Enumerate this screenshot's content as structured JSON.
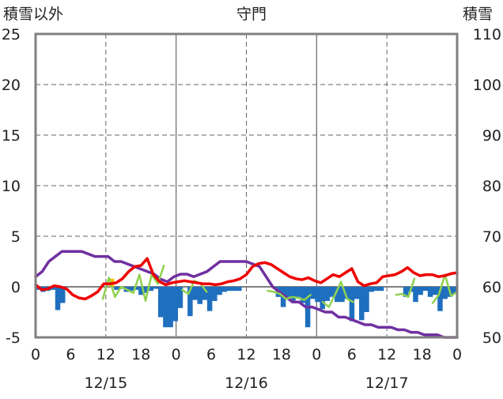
{
  "chart_data": {
    "type": "line",
    "title": "守門",
    "left_axis_title": "積雪以外",
    "right_axis_title": "積雪",
    "left_ylim": [
      -5,
      25
    ],
    "left_ticks": [
      "25",
      "20",
      "15",
      "10",
      "5",
      "0",
      "-5"
    ],
    "right_ylim": [
      50,
      110
    ],
    "right_ticks": [
      "110",
      "100",
      "90",
      "80",
      "70",
      "60",
      "50"
    ],
    "x_hours": [
      0,
      72
    ],
    "x_tick_labels": [
      "0",
      "6",
      "12",
      "18",
      "0",
      "6",
      "12",
      "18",
      "0",
      "6",
      "12",
      "18",
      "0"
    ],
    "date_labels": [
      {
        "label": "12/15",
        "hour": 12
      },
      {
        "label": "12/16",
        "hour": 36
      },
      {
        "label": "12/17",
        "hour": 60
      }
    ],
    "colors": {
      "temperature": "#ee0000",
      "wind": "#8fd14f",
      "snow_depth": "#7030a0",
      "precip_negative": "#1f6fbf",
      "precip_positive": "#ffc000",
      "frame": "#808080"
    },
    "temperature": [
      0.2,
      -0.3,
      -0.2,
      0.1,
      0.0,
      -0.2,
      -0.8,
      -1.1,
      -1.2,
      -0.9,
      -0.5,
      0.3,
      0.3,
      0.4,
      0.8,
      1.5,
      2.0,
      2.1,
      2.8,
      1.2,
      0.5,
      0.2,
      0.4,
      0.5,
      0.6,
      0.5,
      0.4,
      0.3,
      0.3,
      0.2,
      0.3,
      0.5,
      0.6,
      0.8,
      1.2,
      2.0,
      2.3,
      2.4,
      2.2,
      1.8,
      1.4,
      1.0,
      0.8,
      0.7,
      0.9,
      0.6,
      0.4,
      0.8,
      1.2,
      1.0,
      1.4,
      1.8,
      0.5,
      0.1,
      0.3,
      0.4,
      1.0,
      1.1,
      1.2,
      1.5,
      1.9,
      1.4,
      1.1,
      1.2,
      1.2,
      1.0,
      1.1,
      1.3,
      1.4
    ],
    "wind": [
      null,
      null,
      null,
      null,
      null,
      null,
      null,
      null,
      null,
      null,
      null,
      -1.2,
      0.9,
      -1.0,
      0.0,
      -0.3,
      -0.6,
      1.2,
      -1.4,
      1.2,
      0.3,
      2.1,
      null,
      null,
      -0.3,
      -0.7,
      0.6,
      0.3,
      -0.5,
      null,
      null,
      null,
      null,
      null,
      null,
      null,
      null,
      null,
      -0.4,
      -0.5,
      -0.7,
      -1.2,
      -1.0,
      -1.1,
      -1.3,
      -0.8,
      null,
      -1.5,
      -2.0,
      -0.8,
      0.5,
      -1.2,
      -1.5,
      null,
      null,
      null,
      null,
      null,
      null,
      -0.8,
      -0.7,
      -1.0,
      0.8,
      null,
      null,
      -1.6,
      -0.8,
      1.2,
      -0.9,
      -0.5
    ],
    "snow_depth": [
      62,
      63,
      65,
      66,
      67,
      67,
      67,
      67,
      66.5,
      66,
      66,
      66,
      65,
      65,
      64.5,
      64,
      63.5,
      63,
      62.5,
      61.5,
      61,
      62,
      62.5,
      62.5,
      62,
      62.5,
      63,
      64,
      65,
      65,
      65,
      65,
      65,
      64.5,
      64,
      62,
      60,
      59,
      58,
      57,
      57,
      56,
      56,
      55.5,
      55,
      55,
      54,
      54,
      53.5,
      53,
      52.5,
      52.5,
      52,
      52,
      52,
      51.5,
      51.5,
      51,
      51,
      50.5,
      50.5,
      50.5,
      50,
      50,
      50
    ],
    "precip": [
      -0.3,
      -0.5,
      -0.4,
      -0.3,
      -2.3,
      -1.6,
      0,
      0,
      0,
      0,
      0,
      0,
      0,
      0,
      0,
      0.8,
      -0.3,
      -0.2,
      -0.5,
      -0.4,
      -0.3,
      -0.8,
      -0.6,
      -0.4,
      -0.2,
      -3.0,
      -4.0,
      -4.0,
      -3.4,
      -2.1,
      0,
      -2.9,
      -1.3,
      -1.7,
      -1.3,
      -2.4,
      -1.4,
      -0.8,
      -0.5,
      -0.4,
      -0.4,
      -0.4,
      0,
      0,
      0,
      0,
      0,
      0,
      0,
      -1.0,
      -2.0,
      -1.0,
      -1.5,
      -1.0,
      -1.6,
      -4.0,
      -1.2,
      -1.5,
      -2.2,
      -1.4,
      -1.0,
      -1.5,
      -1.5,
      -1.2,
      -3.4,
      -1.2,
      -3.3,
      -2.5,
      -0.5,
      -0.4,
      -0.4,
      0,
      0,
      0,
      0,
      -1.0,
      -0.5,
      -1.5,
      -0.8,
      -0.4,
      -1.0,
      -0.8,
      -2.4,
      -1.2,
      -1.0,
      -0.7
    ]
  }
}
